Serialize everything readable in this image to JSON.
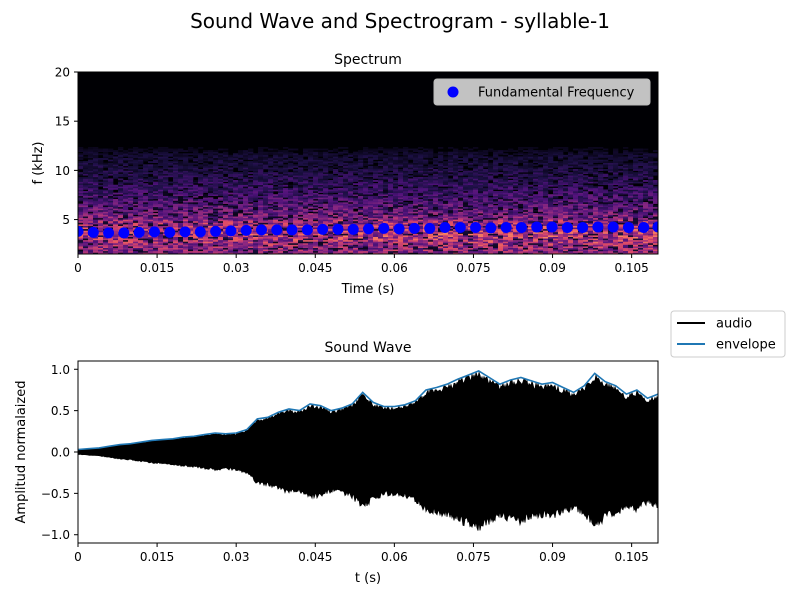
{
  "figure": {
    "suptitle": "Sound Wave and Spectrogram - syllable-1"
  },
  "chart_data": [
    {
      "type": "heatmap",
      "title": "Spectrum",
      "xlabel": "Time (s)",
      "ylabel": "f (kHz)",
      "xlim": [
        0,
        0.11
      ],
      "ylim": [
        1.5,
        20
      ],
      "xticks": [
        "0",
        "0.015",
        "0.03",
        "0.045",
        "0.06",
        "0.075",
        "0.09",
        "0.105"
      ],
      "yticks": [
        "5",
        "10",
        "15",
        "20"
      ],
      "colormap": "magma",
      "spectrum_energy_band_khz": [
        1.5,
        13
      ],
      "legend": {
        "placement": "top-right",
        "entries": [
          "Fundamental Frequency"
        ]
      },
      "series": [
        {
          "name": "Fundamental Frequency",
          "type": "scatter",
          "color": "#0000ff",
          "x": [
            0.0,
            0.0029,
            0.0058,
            0.0087,
            0.0116,
            0.0145,
            0.0174,
            0.0203,
            0.0232,
            0.0261,
            0.029,
            0.0319,
            0.0348,
            0.0377,
            0.0406,
            0.0435,
            0.0464,
            0.0493,
            0.0522,
            0.0551,
            0.058,
            0.0609,
            0.0638,
            0.0667,
            0.0696,
            0.0725,
            0.0754,
            0.0783,
            0.0812,
            0.0841,
            0.087,
            0.0899,
            0.0928,
            0.0957,
            0.0986,
            0.1015,
            0.1044,
            0.1073,
            0.11
          ],
          "y": [
            3.8,
            3.7,
            3.65,
            3.65,
            3.7,
            3.75,
            3.7,
            3.75,
            3.75,
            3.8,
            3.85,
            3.9,
            3.95,
            3.95,
            3.95,
            3.95,
            4.0,
            4.0,
            4.0,
            4.05,
            4.1,
            4.05,
            4.1,
            4.1,
            4.2,
            4.2,
            4.2,
            4.15,
            4.2,
            4.2,
            4.25,
            4.25,
            4.2,
            4.2,
            4.25,
            4.25,
            4.2,
            4.2,
            4.25
          ]
        }
      ]
    },
    {
      "type": "line",
      "title": "Sound Wave",
      "xlabel": "t (s)",
      "ylabel": "Amplitud normalaized",
      "xlim": [
        0,
        0.11
      ],
      "ylim": [
        -1.1,
        1.1
      ],
      "xticks": [
        "0",
        "0.015",
        "0.03",
        "0.045",
        "0.06",
        "0.075",
        "0.09",
        "0.105"
      ],
      "yticks": [
        "−1.0",
        "−0.5",
        "0.0",
        "0.5",
        "1.0"
      ],
      "legend": {
        "placement": "outside-right",
        "entries": [
          "audio",
          "envelope"
        ]
      },
      "series": [
        {
          "name": "audio",
          "color": "#000000"
        },
        {
          "name": "envelope",
          "color": "#1f77b4",
          "x": [
            0.0,
            0.002,
            0.004,
            0.006,
            0.008,
            0.01,
            0.012,
            0.014,
            0.016,
            0.018,
            0.02,
            0.022,
            0.024,
            0.026,
            0.028,
            0.03,
            0.032,
            0.034,
            0.036,
            0.038,
            0.04,
            0.042,
            0.044,
            0.046,
            0.048,
            0.05,
            0.052,
            0.054,
            0.056,
            0.058,
            0.06,
            0.062,
            0.064,
            0.066,
            0.068,
            0.07,
            0.072,
            0.074,
            0.076,
            0.078,
            0.08,
            0.082,
            0.084,
            0.086,
            0.088,
            0.09,
            0.092,
            0.094,
            0.096,
            0.098,
            0.1,
            0.102,
            0.104,
            0.106,
            0.108,
            0.11
          ],
          "y": [
            0.03,
            0.04,
            0.05,
            0.07,
            0.09,
            0.1,
            0.12,
            0.14,
            0.15,
            0.16,
            0.18,
            0.19,
            0.21,
            0.23,
            0.22,
            0.23,
            0.27,
            0.4,
            0.42,
            0.48,
            0.52,
            0.5,
            0.58,
            0.56,
            0.5,
            0.53,
            0.58,
            0.72,
            0.6,
            0.55,
            0.55,
            0.57,
            0.62,
            0.75,
            0.78,
            0.82,
            0.88,
            0.93,
            0.98,
            0.9,
            0.82,
            0.87,
            0.9,
            0.86,
            0.82,
            0.84,
            0.78,
            0.72,
            0.8,
            0.95,
            0.85,
            0.8,
            0.7,
            0.75,
            0.65,
            0.7
          ]
        }
      ]
    }
  ]
}
